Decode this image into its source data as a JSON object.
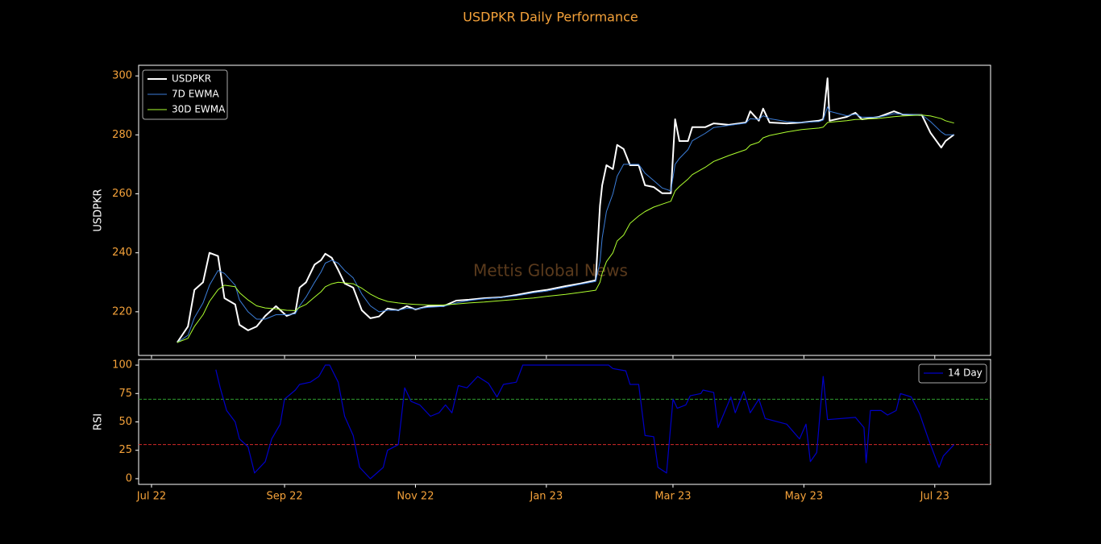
{
  "title": "USDPKR Daily Performance",
  "watermark": "Mettis Global News",
  "chart_data": [
    {
      "type": "line",
      "ylabel": "USDPKR",
      "xlim": [
        "2022-06-25",
        "2023-07-27"
      ],
      "ylim": [
        205.2,
        303.6
      ],
      "yticks": [
        220,
        240,
        260,
        280,
        300
      ],
      "legend": "upper left",
      "x": [
        "2022-07-13",
        "2022-07-18",
        "2022-07-21",
        "2022-07-25",
        "2022-07-28",
        "2022-08-01",
        "2022-08-04",
        "2022-08-09",
        "2022-08-11",
        "2022-08-15",
        "2022-08-19",
        "2022-08-23",
        "2022-08-28",
        "2022-09-02",
        "2022-09-06",
        "2022-09-08",
        "2022-09-11",
        "2022-09-15",
        "2022-09-18",
        "2022-09-20",
        "2022-09-23",
        "2022-09-26",
        "2022-09-29",
        "2022-10-03",
        "2022-10-07",
        "2022-10-11",
        "2022-10-15",
        "2022-10-19",
        "2022-10-24",
        "2022-10-28",
        "2022-11-01",
        "2022-11-07",
        "2022-11-14",
        "2022-11-20",
        "2022-11-26",
        "2022-12-03",
        "2022-12-11",
        "2022-12-18",
        "2022-12-26",
        "2023-01-01",
        "2023-01-10",
        "2023-01-17",
        "2023-01-24",
        "2023-01-26",
        "2023-01-27",
        "2023-01-29",
        "2023-02-01",
        "2023-02-03",
        "2023-02-06",
        "2023-02-09",
        "2023-02-13",
        "2023-02-16",
        "2023-02-20",
        "2023-02-24",
        "2023-02-28",
        "2023-03-02",
        "2023-03-04",
        "2023-03-08",
        "2023-03-10",
        "2023-03-16",
        "2023-03-20",
        "2023-03-27",
        "2023-04-04",
        "2023-04-06",
        "2023-04-10",
        "2023-04-12",
        "2023-04-15",
        "2023-04-23",
        "2023-04-30",
        "2023-05-08",
        "2023-05-10",
        "2023-05-12",
        "2023-05-13",
        "2023-05-21",
        "2023-05-25",
        "2023-05-28",
        "2023-06-05",
        "2023-06-12",
        "2023-06-16",
        "2023-06-25",
        "2023-06-29",
        "2023-07-04",
        "2023-07-06",
        "2023-07-10"
      ],
      "series": [
        {
          "name": "USDPKR",
          "color": "#ffffff",
          "width": 2,
          "values": [
            209.6,
            215.0,
            227.4,
            230.0,
            240.0,
            238.9,
            224.6,
            222.5,
            215.6,
            213.7,
            215.0,
            218.6,
            221.9,
            218.6,
            219.7,
            228.2,
            230.0,
            236.0,
            237.5,
            239.7,
            238.3,
            234.2,
            229.6,
            228.2,
            220.5,
            217.8,
            218.4,
            221.1,
            220.5,
            221.9,
            220.8,
            221.9,
            221.9,
            223.8,
            224.1,
            224.6,
            224.9,
            225.7,
            226.8,
            227.4,
            228.7,
            229.6,
            230.7,
            256.0,
            262.9,
            269.7,
            268.4,
            276.6,
            275.2,
            269.7,
            269.7,
            262.9,
            262.3,
            260.2,
            260.2,
            285.3,
            277.9,
            277.9,
            282.6,
            282.6,
            283.9,
            283.4,
            284.2,
            288.0,
            284.8,
            288.9,
            284.2,
            283.9,
            284.2,
            284.8,
            285.3,
            299.2,
            284.8,
            286.1,
            287.5,
            285.3,
            286.1,
            288.0,
            286.9,
            286.7,
            280.7,
            275.7,
            277.9,
            280.1
          ]
        },
        {
          "name": "7D EWMA",
          "color": "#3b7dd8",
          "width": 1,
          "values": [
            209.6,
            212,
            218,
            223,
            229,
            234,
            233,
            229,
            224,
            220,
            217.5,
            217.5,
            219,
            219,
            219.3,
            222,
            225,
            230,
            233.5,
            236.5,
            237.5,
            236.5,
            234,
            231.5,
            226,
            222,
            220,
            220.5,
            220.5,
            221.2,
            221,
            221.5,
            221.8,
            223,
            223.8,
            224.4,
            224.8,
            225.4,
            226.4,
            227,
            228.3,
            229.3,
            230.3,
            237,
            245,
            254,
            260,
            266,
            270,
            270,
            270,
            267,
            264.5,
            262,
            261,
            270,
            272,
            275,
            278,
            280.5,
            282.5,
            283.2,
            284,
            285.5,
            285.2,
            286.5,
            285.5,
            284.5,
            284.2,
            284.5,
            285,
            289.5,
            288,
            286.5,
            287,
            286,
            286,
            287.2,
            287,
            286.8,
            284.5,
            281,
            280,
            280
          ]
        },
        {
          "name": "30D EWMA",
          "color": "#adff2f",
          "width": 1,
          "values": [
            209.6,
            211,
            215,
            219,
            223.5,
            227.5,
            229,
            228.5,
            226.5,
            224,
            222,
            221.3,
            221,
            220.5,
            220.4,
            221.5,
            222.5,
            225,
            226.8,
            228.5,
            229.5,
            230,
            229.8,
            229.5,
            228,
            226,
            224.5,
            223.5,
            223,
            222.7,
            222.5,
            222.3,
            222.3,
            222.6,
            223,
            223.3,
            223.8,
            224.2,
            224.7,
            225.2,
            225.9,
            226.6,
            227.3,
            230,
            233,
            237,
            240,
            244,
            246,
            250,
            252.5,
            254,
            255.5,
            256.5,
            257.5,
            261,
            262.5,
            265,
            266.5,
            269,
            271,
            273,
            275,
            276.5,
            277.5,
            279,
            279.8,
            281,
            281.8,
            282.3,
            282.6,
            284.2,
            284.3,
            284.8,
            285.2,
            285.3,
            285.6,
            286.2,
            286.4,
            286.7,
            286.4,
            285.5,
            284.8,
            284
          ]
        }
      ]
    },
    {
      "type": "line",
      "ylabel": "RSI",
      "xlim": [
        "2022-06-25",
        "2023-07-27"
      ],
      "ylim": [
        -5,
        105
      ],
      "yticks": [
        0,
        25,
        50,
        75,
        100
      ],
      "legend": "upper right",
      "xticks": [
        {
          "value": "2022-07-01",
          "label": "Jul 22"
        },
        {
          "value": "2022-09-01",
          "label": "Sep 22"
        },
        {
          "value": "2022-11-01",
          "label": "Nov 22"
        },
        {
          "value": "2023-01-01",
          "label": "Jan 23"
        },
        {
          "value": "2023-03-01",
          "label": "Mar 23"
        },
        {
          "value": "2023-05-01",
          "label": "May 23"
        },
        {
          "value": "2023-07-01",
          "label": "Jul 23"
        }
      ],
      "hlines": [
        {
          "value": 70,
          "color": "#2e9b2e"
        },
        {
          "value": 30,
          "color": "#d42a2a"
        }
      ],
      "x": [
        "2022-07-31",
        "2022-08-02",
        "2022-08-05",
        "2022-08-09",
        "2022-08-11",
        "2022-08-15",
        "2022-08-18",
        "2022-08-23",
        "2022-08-26",
        "2022-08-30",
        "2022-09-01",
        "2022-09-06",
        "2022-09-08",
        "2022-09-13",
        "2022-09-17",
        "2022-09-20",
        "2022-09-22",
        "2022-09-26",
        "2022-09-29",
        "2022-10-03",
        "2022-10-06",
        "2022-10-11",
        "2022-10-17",
        "2022-10-19",
        "2022-10-24",
        "2022-10-27",
        "2022-10-30",
        "2022-11-03",
        "2022-11-08",
        "2022-11-12",
        "2022-11-15",
        "2022-11-18",
        "2022-11-21",
        "2022-11-25",
        "2022-11-30",
        "2022-12-05",
        "2022-12-09",
        "2022-12-12",
        "2022-12-18",
        "2022-12-21",
        "2023-01-09",
        "2023-01-30",
        "2023-02-01",
        "2023-02-07",
        "2023-02-09",
        "2023-02-13",
        "2023-02-16",
        "2023-02-20",
        "2023-02-22",
        "2023-02-26",
        "2023-03-01",
        "2023-03-03",
        "2023-03-07",
        "2023-03-09",
        "2023-03-14",
        "2023-03-15",
        "2023-03-20",
        "2023-03-22",
        "2023-03-28",
        "2023-03-30",
        "2023-04-03",
        "2023-04-06",
        "2023-04-10",
        "2023-04-13",
        "2023-04-23",
        "2023-04-29",
        "2023-05-02",
        "2023-05-04",
        "2023-05-07",
        "2023-05-10",
        "2023-05-12",
        "2023-05-25",
        "2023-05-29",
        "2023-05-30",
        "2023-06-01",
        "2023-06-06",
        "2023-06-09",
        "2023-06-13",
        "2023-06-15",
        "2023-06-20",
        "2023-06-24",
        "2023-06-28",
        "2023-07-03",
        "2023-07-05",
        "2023-07-10"
      ],
      "series": [
        {
          "name": "14 Day",
          "color": "#0000c8",
          "width": 1.2,
          "values": [
            96,
            80,
            60,
            50,
            35,
            28,
            5,
            15,
            35,
            48,
            70,
            78,
            83,
            85,
            90,
            100,
            100,
            85,
            55,
            38,
            10,
            0,
            10,
            25,
            30,
            80,
            68,
            65,
            55,
            58,
            65,
            58,
            82,
            80,
            90,
            84,
            72,
            83,
            85,
            100,
            100,
            100,
            97,
            95,
            83,
            83,
            38,
            37,
            10,
            5,
            70,
            62,
            65,
            73,
            75,
            78,
            76,
            45,
            72,
            58,
            77,
            58,
            70,
            53,
            48,
            35,
            48,
            15,
            23,
            90,
            52,
            54,
            45,
            14,
            60,
            60,
            56,
            60,
            75,
            72,
            57,
            35,
            10,
            20,
            30
          ]
        }
      ]
    }
  ]
}
